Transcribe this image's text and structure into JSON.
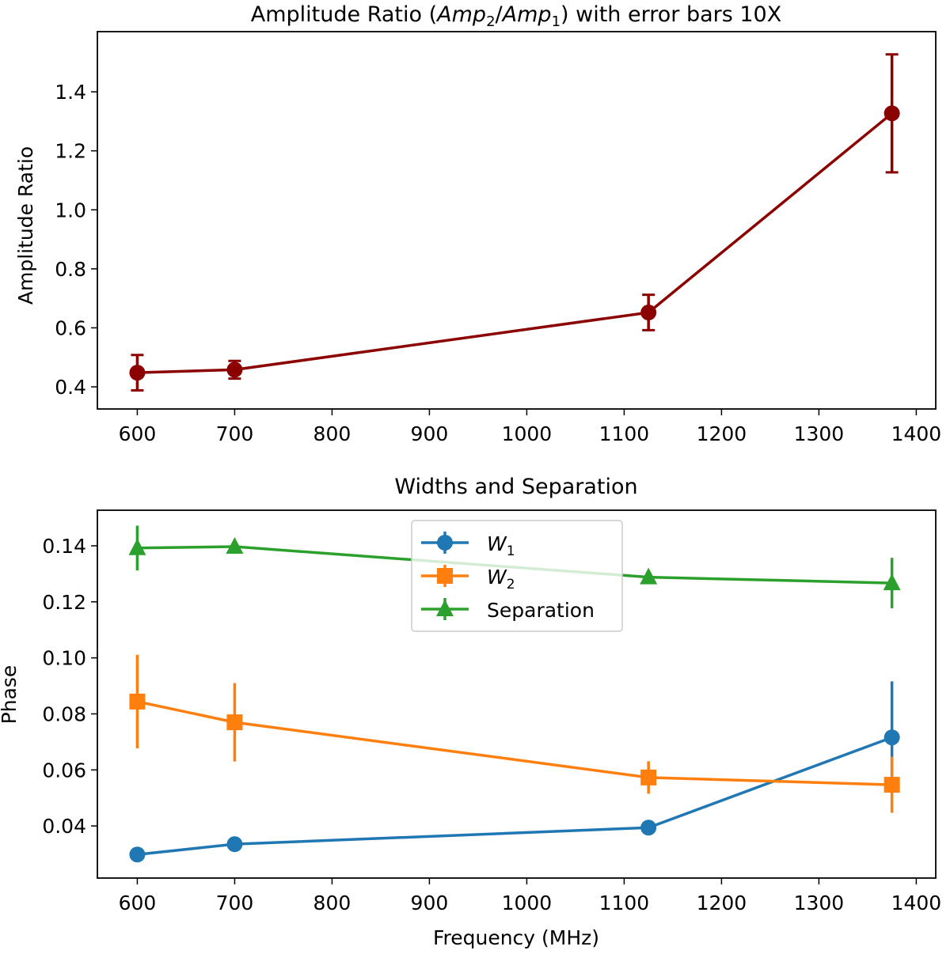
{
  "chart_data": [
    {
      "type": "line",
      "title": "Amplitude Ratio (Amp2/Amp1) with error bars 10X",
      "title_parts": {
        "pre": "Amplitude Ratio (",
        "a": "Amp",
        "a_sub": "2",
        "slash": "/",
        "b": "Amp",
        "b_sub": "1",
        "post": ") with error bars 10X"
      },
      "xlabel": "",
      "ylabel": "Amplitude Ratio",
      "xlim": [
        559,
        1420
      ],
      "ylim": [
        0.325,
        1.604
      ],
      "xticks": [
        600,
        700,
        800,
        900,
        1000,
        1100,
        1200,
        1300,
        1400
      ],
      "yticks": [
        0.4,
        0.6,
        0.8,
        1.0,
        1.2,
        1.4
      ],
      "ytick_labels": [
        "0.4",
        "0.6",
        "0.8",
        "1.0",
        "1.2",
        "1.4"
      ],
      "grid": false,
      "series": [
        {
          "color": "#8b0000",
          "marker": "circle",
          "capsize": true,
          "x": [
            600,
            700,
            1125,
            1375
          ],
          "y": [
            0.448,
            0.458,
            0.652,
            1.327
          ],
          "yerr": [
            0.06,
            0.03,
            0.06,
            0.2
          ]
        }
      ]
    },
    {
      "type": "line",
      "title": "Widths and Separation",
      "xlabel": "Frequency (MHz)",
      "ylabel": "Phase",
      "xlim": [
        559,
        1420
      ],
      "ylim": [
        0.0214,
        0.1527
      ],
      "xticks": [
        600,
        700,
        800,
        900,
        1000,
        1100,
        1200,
        1300,
        1400
      ],
      "yticks": [
        0.04,
        0.06,
        0.08,
        0.1,
        0.12,
        0.14
      ],
      "ytick_labels": [
        "0.04",
        "0.06",
        "0.08",
        "0.10",
        "0.12",
        "0.14"
      ],
      "grid": false,
      "legend": "upper-center",
      "series": [
        {
          "name": "W1",
          "name_main": "W",
          "name_sub": "1",
          "color": "#1f77b4",
          "marker": "circle",
          "x": [
            600,
            700,
            1125,
            1375
          ],
          "y": [
            0.0298,
            0.0335,
            0.0394,
            0.0716
          ],
          "yerr": [
            0.0005,
            0.0005,
            0.0005,
            0.02
          ]
        },
        {
          "name": "W2",
          "name_main": "W",
          "name_sub": "2",
          "color": "#ff7f0e",
          "marker": "square",
          "x": [
            600,
            700,
            1125,
            1375
          ],
          "y": [
            0.0844,
            0.077,
            0.0573,
            0.0547
          ],
          "yerr": [
            0.0167,
            0.014,
            0.0058,
            0.01
          ]
        },
        {
          "name": "Separation",
          "name_main": "Separation",
          "name_sub": "",
          "color": "#2ca02c",
          "marker": "triangle",
          "x": [
            600,
            700,
            1125,
            1375
          ],
          "y": [
            0.1392,
            0.1397,
            0.1288,
            0.1267
          ],
          "yerr": [
            0.008,
            0.0015,
            0.001,
            0.009
          ]
        }
      ]
    }
  ]
}
